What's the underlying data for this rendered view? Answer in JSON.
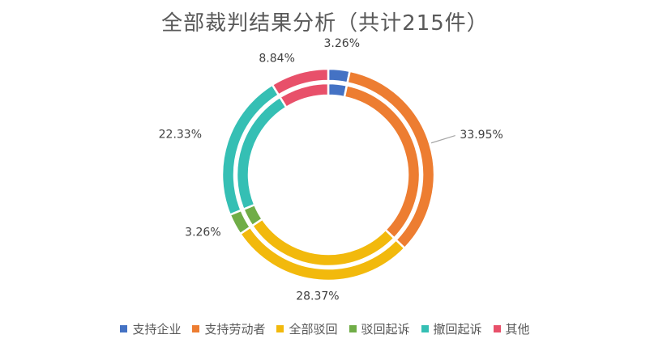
{
  "chart_data": {
    "type": "pie",
    "title": "全部裁判结果分析（共计215件）",
    "categories": [
      "支持企业",
      "支持劳动者",
      "全部驳回",
      "驳回起诉",
      "撤回起诉",
      "其他"
    ],
    "values": [
      3.26,
      33.95,
      28.37,
      3.26,
      22.33,
      8.84
    ],
    "labels": [
      "3.26%",
      "33.95%",
      "28.37%",
      "3.26%",
      "22.33%",
      "8.84%"
    ],
    "colors": [
      "#4472C4",
      "#ED7D31",
      "#F2B90C",
      "#70AD47",
      "#35BFB4",
      "#E8506A"
    ],
    "rings": 2,
    "legend_position": "bottom"
  }
}
